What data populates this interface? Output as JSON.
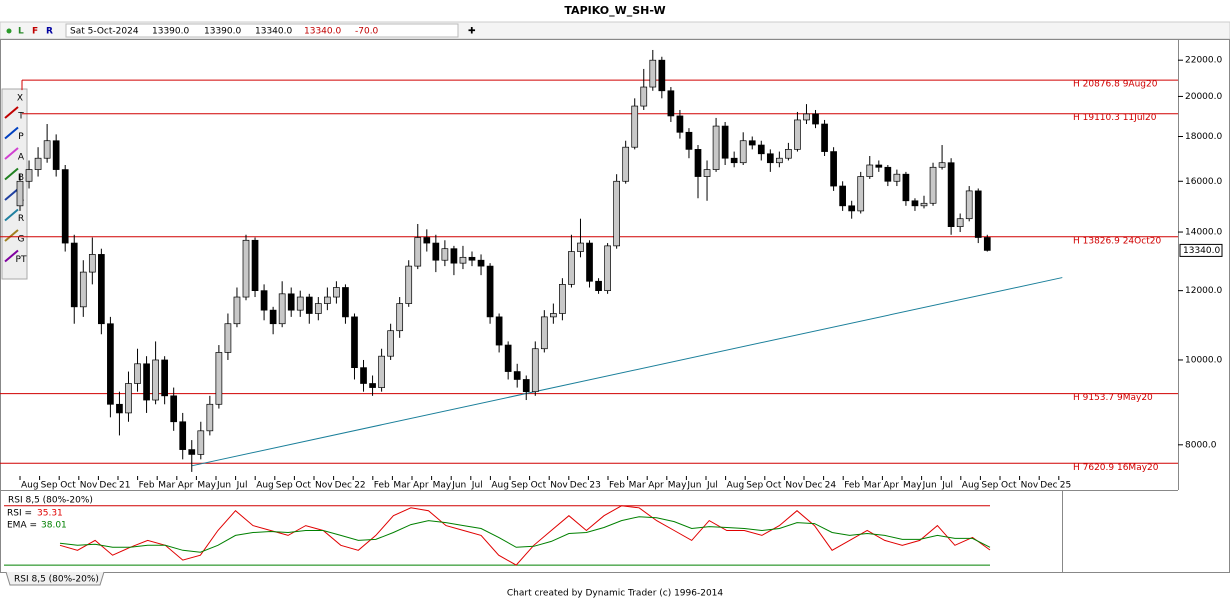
{
  "title": "TAPIKO_W_SH-W",
  "topbar": [
    "L",
    "F",
    "R"
  ],
  "info": [
    "Sat 5-Oct-2024",
    "13390.0",
    "13390.0",
    "13340.0",
    "13340.0",
    "-70.0"
  ],
  "toolbar": [
    "T",
    "P",
    "A",
    "B",
    "R",
    "R",
    "G",
    "PT"
  ],
  "tab": "RSI 8,5 (80%-20%)",
  "footer": "Chart created by Dynamic Trader  (c) 1996-2014",
  "chart_data": [
    {
      "type": "candlestick",
      "log_scale": true,
      "up_color": "#c8c8c8",
      "down_color": "#000000",
      "ylim": [
        7370,
        23200
      ],
      "yticks": [
        {
          "value": 8000,
          "label": "8000.0"
        },
        {
          "value": 10000,
          "label": "10000.0"
        },
        {
          "value": 12000,
          "label": "12000.0"
        },
        {
          "value": 14000,
          "label": "14000.0"
        },
        {
          "value": 16000,
          "label": "16000.0"
        },
        {
          "value": 18000,
          "label": "18000.0"
        },
        {
          "value": 20000,
          "label": "20000.0"
        },
        {
          "value": 22000,
          "label": "22000.0"
        }
      ],
      "x_labels": [
        "Aug",
        "Sep",
        "Oct",
        "Nov",
        "Dec",
        "21",
        "Feb",
        "Mar",
        "Apr",
        "May",
        "Jun",
        "Jul",
        "Aug",
        "Sep",
        "Oct",
        "Nov",
        "Dec",
        "22",
        "Feb",
        "Mar",
        "Apr",
        "May",
        "Jun",
        "Jul",
        "Aug",
        "Sep",
        "Oct",
        "Nov",
        "Dec",
        "23",
        "Feb",
        "Mar",
        "Apr",
        "May",
        "Jun",
        "Jul",
        "Aug",
        "Sep",
        "Oct",
        "Nov",
        "Dec",
        "24",
        "Feb",
        "Mar",
        "Apr",
        "May",
        "Jun",
        "Jul",
        "Aug",
        "Sep",
        "Oct",
        "Nov",
        "Dec",
        "25"
      ],
      "levels": [
        {
          "label": "H 20876.8 9Aug20",
          "value": 20876.8
        },
        {
          "label": "H 19110.3 11Jul20",
          "value": 19110.3
        },
        {
          "label": "H 13826.9 24Oct20",
          "value": 13826.9
        },
        {
          "label": "H 9153.7 9May20",
          "value": 9153.7
        },
        {
          "label": "H 7620.9 16May20",
          "value": 7620.9
        }
      ],
      "level_color": "#d00000",
      "trendline": {
        "x": [
          19,
          115.3
        ],
        "values": [
          7570,
          12420
        ],
        "color": "#1a7f9a"
      },
      "last_price": {
        "value": 13340,
        "label": "13340.0"
      },
      "ohlc": [
        [
          15000,
          16300,
          14800,
          16000
        ],
        [
          16000,
          16900,
          15700,
          16500
        ],
        [
          16500,
          17500,
          16200,
          17000
        ],
        [
          17000,
          18600,
          16800,
          17800
        ],
        [
          17800,
          18100,
          16200,
          16500
        ],
        [
          16500,
          16700,
          13300,
          13600
        ],
        [
          13600,
          13900,
          11000,
          11500
        ],
        [
          11500,
          13000,
          11200,
          12600
        ],
        [
          12600,
          13800,
          12200,
          13200
        ],
        [
          13200,
          13400,
          10700,
          11000
        ],
        [
          11000,
          11200,
          8600,
          8900
        ],
        [
          8900,
          9200,
          8200,
          8700
        ],
        [
          8700,
          9700,
          8500,
          9400
        ],
        [
          9400,
          10300,
          9200,
          9900
        ],
        [
          9900,
          10100,
          8700,
          9000
        ],
        [
          9000,
          10500,
          8900,
          10000
        ],
        [
          10000,
          10100,
          8900,
          9100
        ],
        [
          9100,
          9300,
          8300,
          8500
        ],
        [
          8500,
          8700,
          7700,
          7900
        ],
        [
          7900,
          8100,
          7450,
          7800
        ],
        [
          7800,
          8500,
          7700,
          8300
        ],
        [
          8300,
          9100,
          8200,
          8900
        ],
        [
          8900,
          10400,
          8800,
          10200
        ],
        [
          10200,
          11300,
          10000,
          11000
        ],
        [
          11000,
          12100,
          10900,
          11800
        ],
        [
          11800,
          13900,
          11700,
          13700
        ],
        [
          13700,
          13800,
          11800,
          12000
        ],
        [
          12000,
          12200,
          11100,
          11400
        ],
        [
          11400,
          11500,
          10700,
          11000
        ],
        [
          11000,
          12300,
          10900,
          11900
        ],
        [
          11900,
          12100,
          11200,
          11400
        ],
        [
          11400,
          12000,
          11200,
          11800
        ],
        [
          11800,
          11900,
          11000,
          11300
        ],
        [
          11300,
          11800,
          11100,
          11600
        ],
        [
          11600,
          12100,
          11400,
          11800
        ],
        [
          11800,
          12300,
          11600,
          12100
        ],
        [
          12100,
          12200,
          11000,
          11200
        ],
        [
          11200,
          11300,
          9500,
          9800
        ],
        [
          9800,
          10000,
          9200,
          9400
        ],
        [
          9400,
          9600,
          9100,
          9300
        ],
        [
          9300,
          10300,
          9200,
          10100
        ],
        [
          10100,
          11000,
          10000,
          10800
        ],
        [
          10800,
          11800,
          10600,
          11600
        ],
        [
          11600,
          13000,
          11500,
          12800
        ],
        [
          12800,
          14300,
          12700,
          13800
        ],
        [
          13800,
          14100,
          13300,
          13600
        ],
        [
          13600,
          13900,
          12600,
          13000
        ],
        [
          13000,
          13700,
          12800,
          13400
        ],
        [
          13400,
          13500,
          12500,
          12900
        ],
        [
          12900,
          13500,
          12700,
          13100
        ],
        [
          13100,
          13300,
          12800,
          13000
        ],
        [
          13000,
          13200,
          12500,
          12800
        ],
        [
          12800,
          12900,
          11000,
          11200
        ],
        [
          11200,
          11300,
          10200,
          10400
        ],
        [
          10400,
          10500,
          9500,
          9700
        ],
        [
          9700,
          9900,
          9300,
          9500
        ],
        [
          9500,
          9600,
          9000,
          9200
        ],
        [
          9200,
          10500,
          9100,
          10300
        ],
        [
          10300,
          11400,
          10200,
          11200
        ],
        [
          11200,
          11600,
          11000,
          11300
        ],
        [
          11300,
          12400,
          11100,
          12200
        ],
        [
          12200,
          13900,
          12100,
          13300
        ],
        [
          13300,
          14500,
          13100,
          13600
        ],
        [
          13600,
          13700,
          12100,
          12300
        ],
        [
          12300,
          12400,
          11900,
          12000
        ],
        [
          12000,
          13600,
          11900,
          13500
        ],
        [
          13500,
          16300,
          13400,
          16000
        ],
        [
          16000,
          17800,
          15900,
          17500
        ],
        [
          17500,
          19900,
          17400,
          19500
        ],
        [
          19500,
          21500,
          19300,
          20500
        ],
        [
          20500,
          22600,
          20300,
          22000
        ],
        [
          22000,
          22200,
          19900,
          20300
        ],
        [
          20300,
          20500,
          18700,
          19000
        ],
        [
          19000,
          19300,
          17900,
          18200
        ],
        [
          18200,
          18400,
          17000,
          17400
        ],
        [
          17400,
          17600,
          15300,
          16200
        ],
        [
          16200,
          16900,
          15200,
          16500
        ],
        [
          16500,
          18900,
          16400,
          18500
        ],
        [
          18500,
          18700,
          16700,
          17000
        ],
        [
          17000,
          17300,
          16600,
          16800
        ],
        [
          16800,
          18200,
          16700,
          17800
        ],
        [
          17800,
          18000,
          17400,
          17600
        ],
        [
          17600,
          17800,
          16900,
          17200
        ],
        [
          17200,
          17400,
          16400,
          16800
        ],
        [
          16800,
          17300,
          16600,
          17000
        ],
        [
          17000,
          17700,
          16900,
          17400
        ],
        [
          17400,
          19200,
          17300,
          18800
        ],
        [
          18800,
          19600,
          18600,
          19100
        ],
        [
          19100,
          19300,
          18400,
          18600
        ],
        [
          18600,
          18800,
          17100,
          17300
        ],
        [
          17300,
          17500,
          15600,
          15800
        ],
        [
          15800,
          16000,
          14800,
          15000
        ],
        [
          15000,
          15200,
          14500,
          14800
        ],
        [
          14800,
          16400,
          14700,
          16200
        ],
        [
          16200,
          17100,
          16100,
          16700
        ],
        [
          16700,
          16900,
          16400,
          16600
        ],
        [
          16600,
          16700,
          15800,
          16000
        ],
        [
          16000,
          16500,
          15800,
          16300
        ],
        [
          16300,
          16400,
          15000,
          15200
        ],
        [
          15200,
          15300,
          14800,
          15000
        ],
        [
          15000,
          15400,
          14900,
          15100
        ],
        [
          15100,
          16800,
          15000,
          16600
        ],
        [
          16600,
          17600,
          16500,
          16800
        ],
        [
          16800,
          17000,
          13900,
          14200
        ],
        [
          14200,
          14700,
          14000,
          14500
        ],
        [
          14500,
          15800,
          14400,
          15600
        ],
        [
          15600,
          15700,
          13600,
          13800
        ],
        [
          13800,
          13900,
          13300,
          13340
        ]
      ]
    },
    {
      "type": "line",
      "title": "RSI 8,5 (80%-20%)",
      "ylim": [
        13,
        96
      ],
      "bands": [
        {
          "value": 80,
          "color": "#d00000"
        },
        {
          "value": 20,
          "color": "#008000"
        }
      ],
      "series": [
        {
          "name": "RSI =",
          "color": "#e00000",
          "values": [
            40,
            35,
            45,
            30,
            38,
            45,
            40,
            25,
            30,
            55,
            75,
            60,
            55,
            50,
            60,
            55,
            40,
            35,
            50,
            70,
            78,
            75,
            60,
            55,
            50,
            30,
            20,
            40,
            55,
            70,
            55,
            70,
            80,
            78,
            65,
            55,
            45,
            65,
            55,
            55,
            50,
            60,
            75,
            60,
            35,
            45,
            55,
            45,
            40,
            45,
            60,
            40,
            48,
            35.31
          ]
        },
        {
          "name": "EMA =",
          "color": "#008000",
          "values": [
            42,
            40,
            41,
            38,
            38,
            40,
            40,
            35,
            33,
            40,
            50,
            53,
            54,
            53,
            55,
            55,
            50,
            45,
            46,
            53,
            61,
            65,
            63,
            60,
            57,
            48,
            38,
            39,
            44,
            52,
            53,
            58,
            65,
            69,
            68,
            64,
            57,
            59,
            58,
            57,
            55,
            57,
            63,
            62,
            53,
            50,
            52,
            50,
            46,
            46,
            50,
            47,
            47,
            38.01
          ]
        }
      ]
    }
  ]
}
